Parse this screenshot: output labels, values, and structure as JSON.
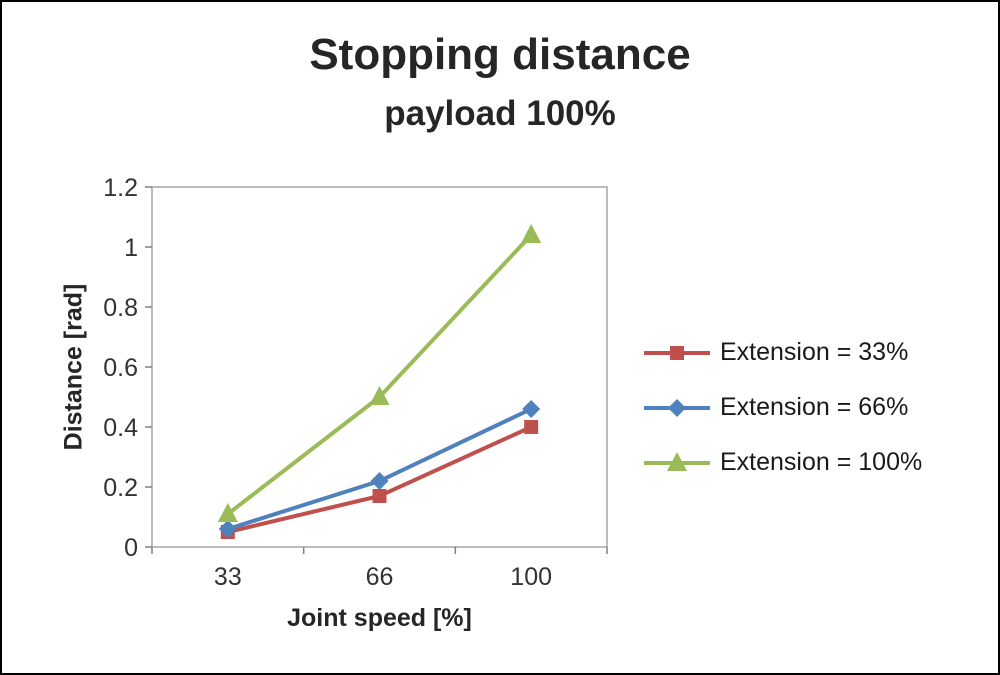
{
  "chart_data": {
    "type": "line",
    "title": "Stopping distance",
    "subtitle": "payload 100%",
    "xlabel": "Joint speed [%]",
    "ylabel": "Distance [rad]",
    "categories": [
      "33",
      "66",
      "100"
    ],
    "yticks": [
      0,
      0.2,
      0.4,
      0.6,
      0.8,
      1,
      1.2
    ],
    "ylim": [
      0,
      1.2
    ],
    "grid": false,
    "legend_position": "right",
    "plot_border_color": "#a6a6a6",
    "axis_tick_color": "#808080",
    "series": [
      {
        "name": "Extension = 33%",
        "color": "#C0504D",
        "marker": "square",
        "values": [
          0.05,
          0.17,
          0.4
        ]
      },
      {
        "name": "Extension = 66%",
        "color": "#4F81BD",
        "marker": "diamond",
        "values": [
          0.06,
          0.22,
          0.46
        ]
      },
      {
        "name": "Extension = 100%",
        "color": "#9BBB59",
        "marker": "triangle",
        "values": [
          0.11,
          0.5,
          1.04
        ]
      }
    ]
  }
}
